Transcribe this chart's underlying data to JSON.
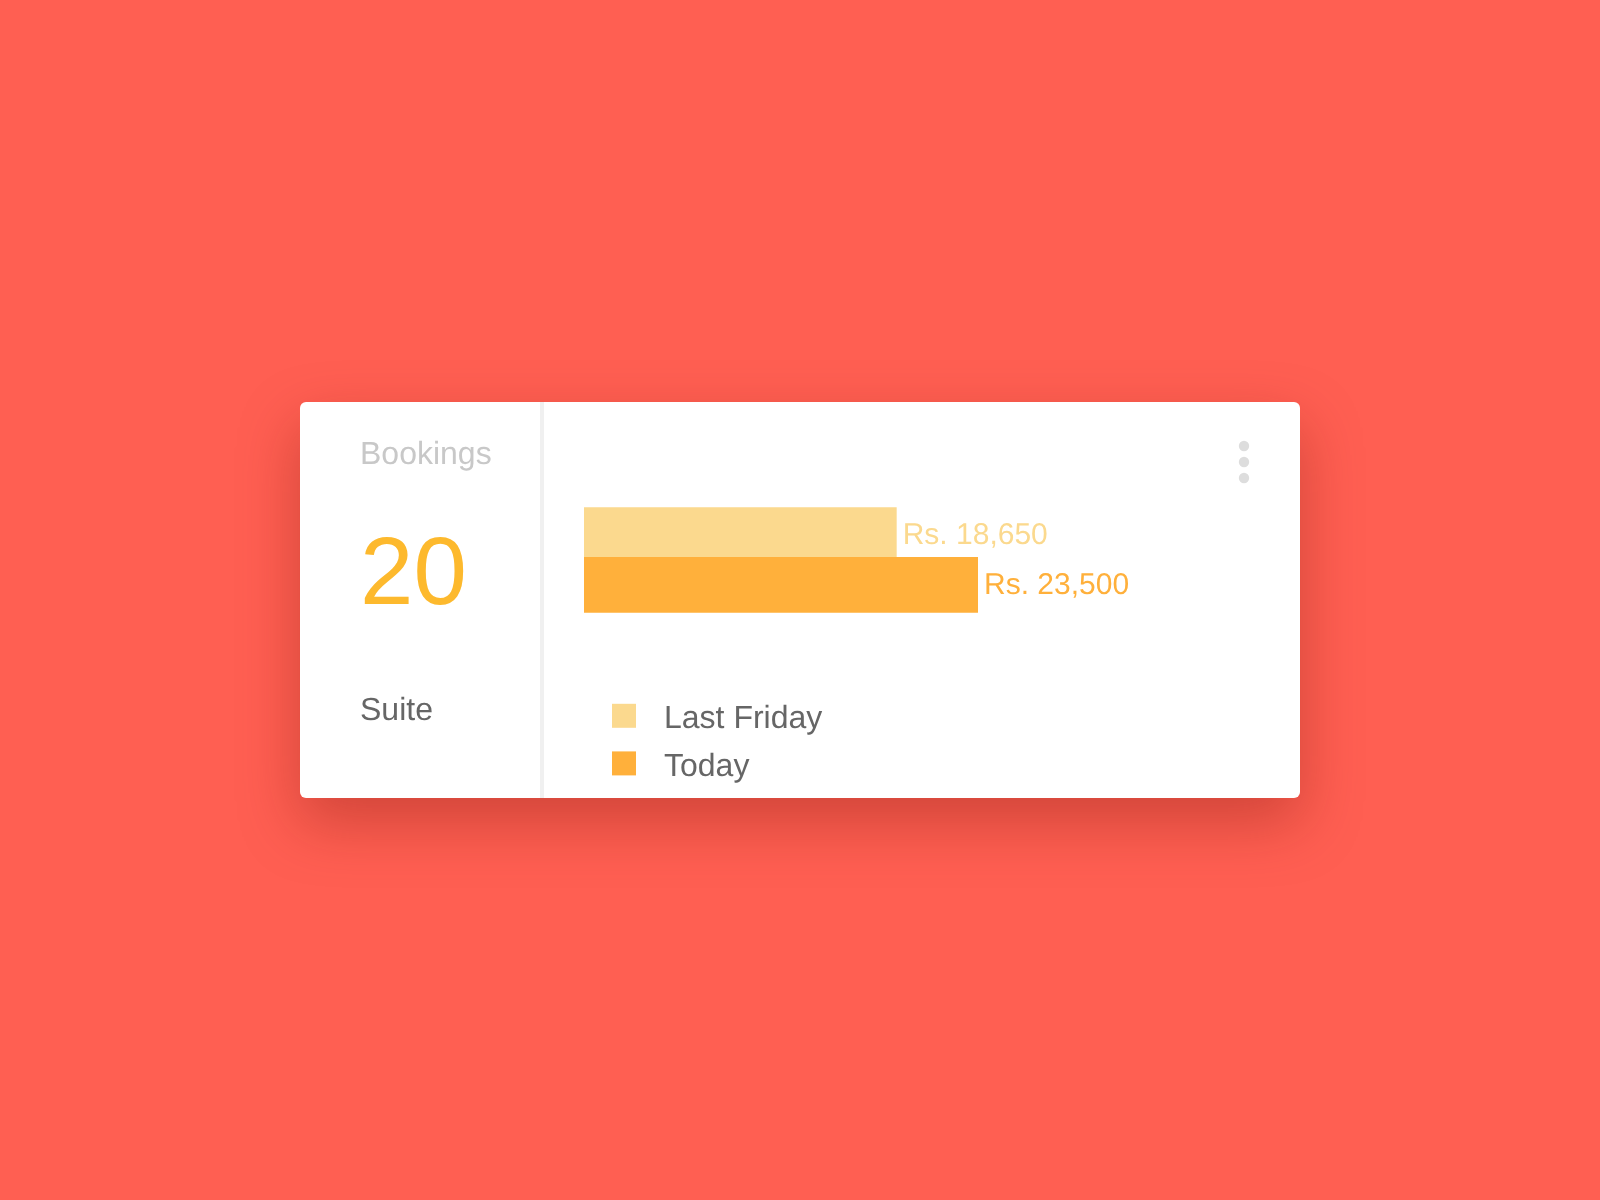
{
  "chart_data": [
    {
      "type": "other",
      "title": "Bookings",
      "annotations": [
        "20",
        "Suite"
      ]
    },
    {
      "type": "bar",
      "orientation": "horizontal",
      "categories": [
        null
      ],
      "xlim": [
        0,
        23500
      ],
      "tick_labels": false,
      "legend": "bottom",
      "series": [
        {
          "name": "Last Friday",
          "color": "#fbd98e",
          "values": [
            18650
          ],
          "value_labels": [
            "Rs. 18,650"
          ]
        },
        {
          "name": "Today",
          "color": "#ffb03b",
          "values": [
            23500
          ],
          "value_labels": [
            "Rs. 23,500"
          ]
        }
      ]
    }
  ]
}
